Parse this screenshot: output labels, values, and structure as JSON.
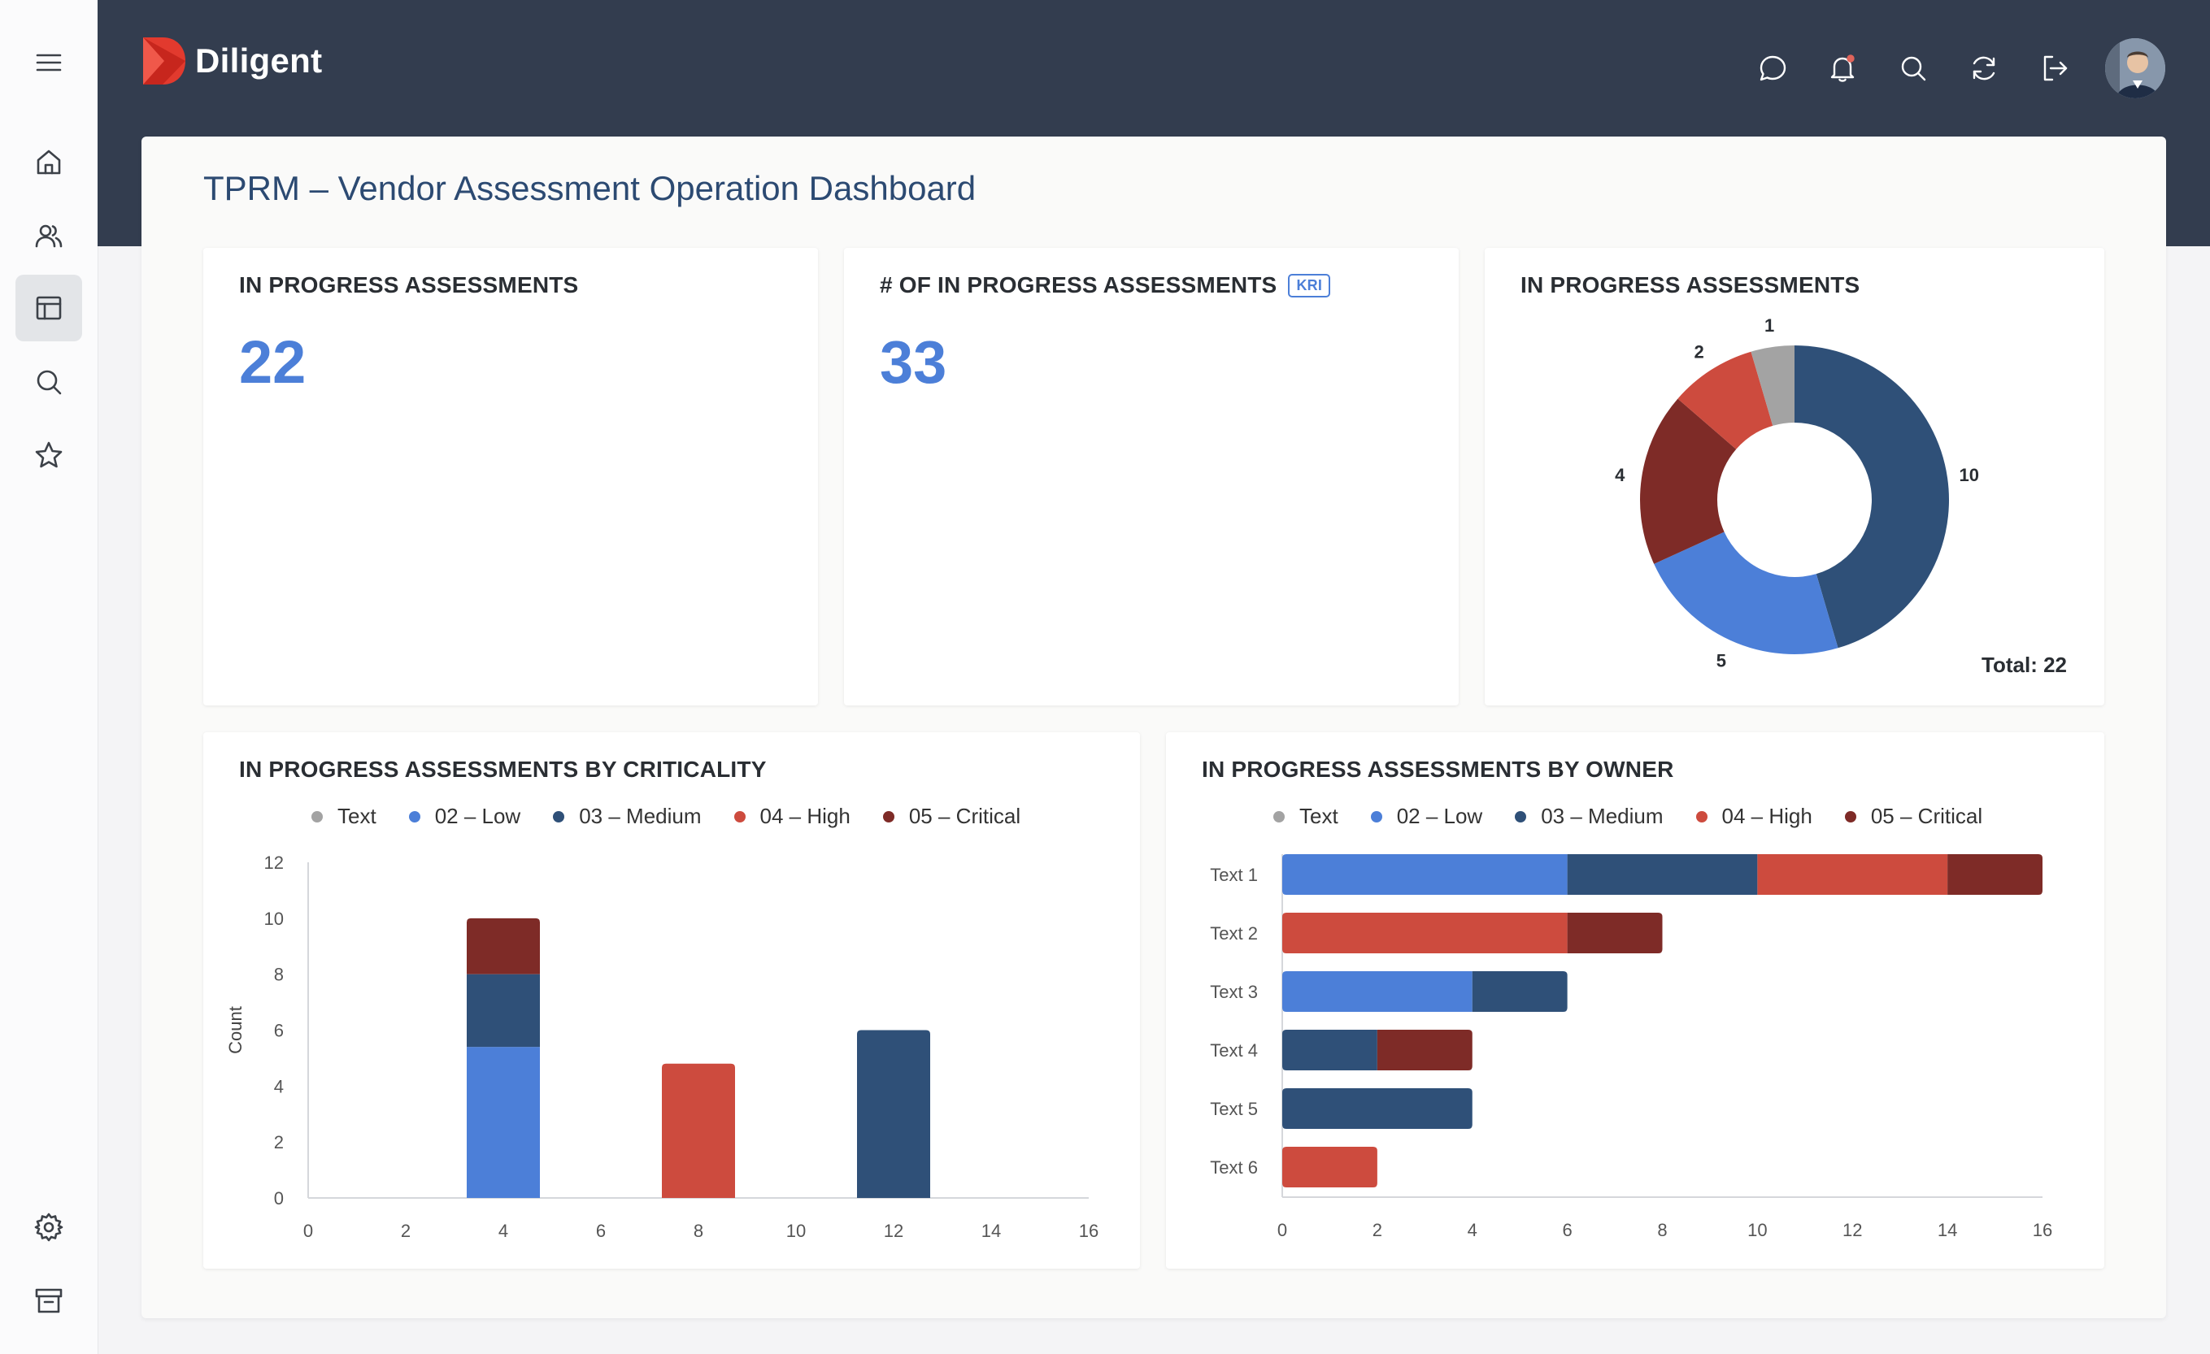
{
  "app": {
    "name": "Diligent"
  },
  "page": {
    "title": "TPRM – Vendor Assessment Operation Dashboard"
  },
  "cards": {
    "in_progress": {
      "title": "IN PROGRESS ASSESSMENTS",
      "value": "22"
    },
    "count_kri": {
      "title": "# OF IN PROGRESS ASSESSMENTS",
      "badge": "KRI",
      "value": "33"
    },
    "donut": {
      "title": "IN PROGRESS ASSESSMENTS",
      "total_label": "Total: 22"
    },
    "criticality": {
      "title": "IN PROGRESS ASSESSMENTS BY CRITICALITY"
    },
    "owner": {
      "title": "IN PROGRESS ASSESSMENTS BY OWNER"
    }
  },
  "legend": [
    {
      "label": "Text",
      "color": "#a3a3a3"
    },
    {
      "label": "02 – Low",
      "color": "#4c7fd8"
    },
    {
      "label": "03 – Medium",
      "color": "#2f5078"
    },
    {
      "label": "04 – High",
      "color": "#cd4b3e"
    },
    {
      "label": "05 – Critical",
      "color": "#7e2b27"
    }
  ],
  "sidebar": {
    "items": [
      {
        "icon": "home-icon"
      },
      {
        "icon": "users-icon"
      },
      {
        "icon": "dashboard-icon",
        "active": true
      },
      {
        "icon": "search-icon"
      },
      {
        "icon": "star-icon"
      }
    ],
    "bottom": [
      {
        "icon": "settings-icon"
      },
      {
        "icon": "archive-icon"
      }
    ]
  },
  "header_icons": [
    "chat-icon",
    "bell-icon",
    "search-icon",
    "refresh-icon",
    "logout-icon"
  ],
  "chart_data": [
    {
      "type": "pie",
      "title": "IN PROGRESS ASSESSMENTS",
      "categories": [
        "03 – Medium",
        "02 – Low",
        "05 – Critical",
        "04 – High",
        "Text"
      ],
      "values": [
        10,
        5,
        4,
        2,
        1
      ],
      "colors": [
        "#2f5078",
        "#4c7fd8",
        "#7e2b27",
        "#cd4b3e",
        "#a3a3a3"
      ],
      "total": 22
    },
    {
      "type": "bar",
      "title": "IN PROGRESS ASSESSMENTS BY CRITICALITY",
      "ylabel": "Count",
      "xlim": [
        0,
        16
      ],
      "ylim": [
        0,
        12
      ],
      "xticks": [
        0,
        2,
        4,
        6,
        8,
        10,
        12,
        14,
        16
      ],
      "yticks": [
        0,
        2,
        4,
        6,
        8,
        10,
        12
      ],
      "bars": [
        {
          "x": 4,
          "stack": [
            {
              "series": "02 – Low",
              "value": 5.4
            },
            {
              "series": "03 – Medium",
              "value": 2.6
            },
            {
              "series": "05 – Critical",
              "value": 2
            }
          ]
        },
        {
          "x": 8,
          "stack": [
            {
              "series": "04 – High",
              "value": 4.8
            }
          ]
        },
        {
          "x": 12,
          "stack": [
            {
              "series": "03 – Medium",
              "value": 6
            }
          ]
        }
      ]
    },
    {
      "type": "bar",
      "orientation": "horizontal",
      "title": "IN PROGRESS ASSESSMENTS BY OWNER",
      "categories": [
        "Text 1",
        "Text 2",
        "Text 3",
        "Text 4",
        "Text 5",
        "Text 6"
      ],
      "xlim": [
        0,
        16
      ],
      "xticks": [
        0,
        2,
        4,
        6,
        8,
        10,
        12,
        14,
        16
      ],
      "series": [
        {
          "name": "02 – Low",
          "values": [
            6,
            0,
            4,
            0,
            0,
            0
          ]
        },
        {
          "name": "03 – Medium",
          "values": [
            4,
            0,
            2,
            2,
            4,
            0
          ]
        },
        {
          "name": "04 – High",
          "values": [
            4,
            6,
            0,
            0,
            0,
            2
          ]
        },
        {
          "name": "05 – Critical",
          "values": [
            2,
            2,
            0,
            2,
            0,
            0
          ]
        }
      ]
    }
  ]
}
